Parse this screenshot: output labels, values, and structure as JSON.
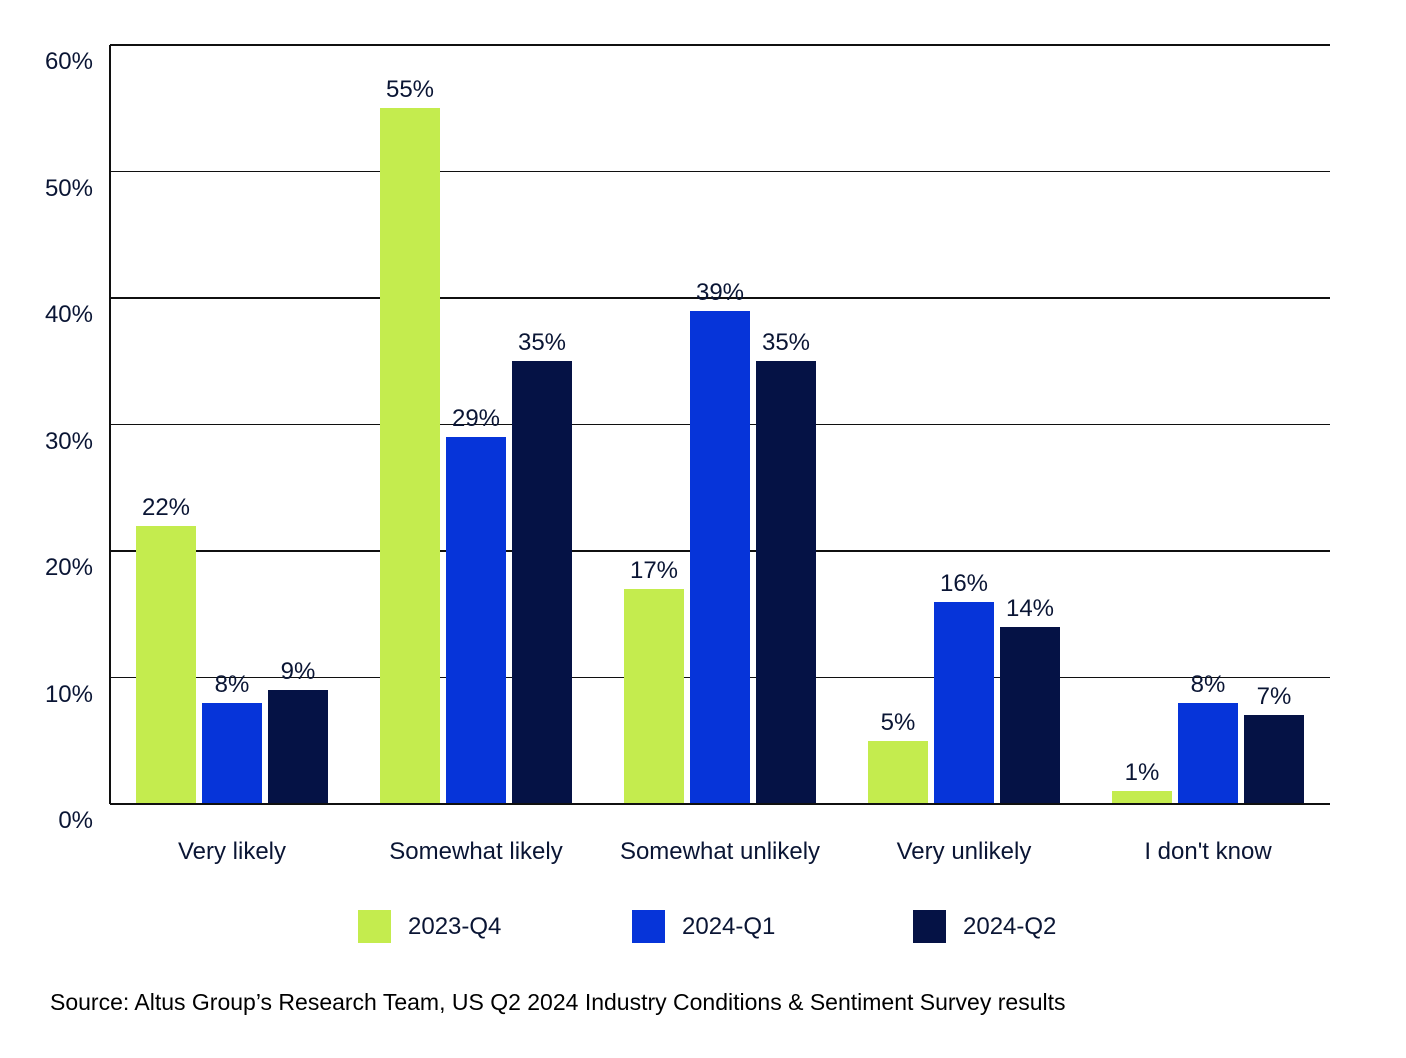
{
  "chart_data": {
    "type": "bar",
    "title": "",
    "categories": [
      "Very likely",
      "Somewhat likely",
      "Somewhat unlikely",
      "Very unlikely",
      "I don't know"
    ],
    "series": [
      {
        "name": "2023-Q4",
        "color": "#c4ec4e",
        "values": [
          22,
          55,
          17,
          5,
          1
        ],
        "labels": [
          "22%",
          "55%",
          "17%",
          "5%",
          "1%"
        ]
      },
      {
        "name": "2024-Q1",
        "color": "#0634d9",
        "values": [
          8,
          29,
          39,
          16,
          8
        ],
        "labels": [
          "8%",
          "29%",
          "39%",
          "16%",
          "8%"
        ]
      },
      {
        "name": "2024-Q2",
        "color": "#051245",
        "values": [
          9,
          35,
          35,
          14,
          7
        ],
        "labels": [
          "9%",
          "35%",
          "35%",
          "14%",
          "7%"
        ]
      }
    ],
    "y_axis": {
      "min": 0,
      "max": 60,
      "tick_values": [
        0,
        10,
        20,
        30,
        40,
        50,
        60
      ],
      "tick_labels": [
        "0%",
        "10%",
        "20%",
        "30%",
        "40%",
        "50%",
        "60%"
      ]
    },
    "grid": true,
    "data_labels": true,
    "legend_position": "bottom",
    "xlabel": "",
    "ylabel": ""
  },
  "source_note": "Source: Altus Group’s Research Team, US Q2 2024 Industry Conditions & Sentiment Survey results",
  "colors": {
    "background": "#ffffff",
    "grid": "#101010",
    "text": "#0a1534",
    "source_text": "#000000"
  }
}
